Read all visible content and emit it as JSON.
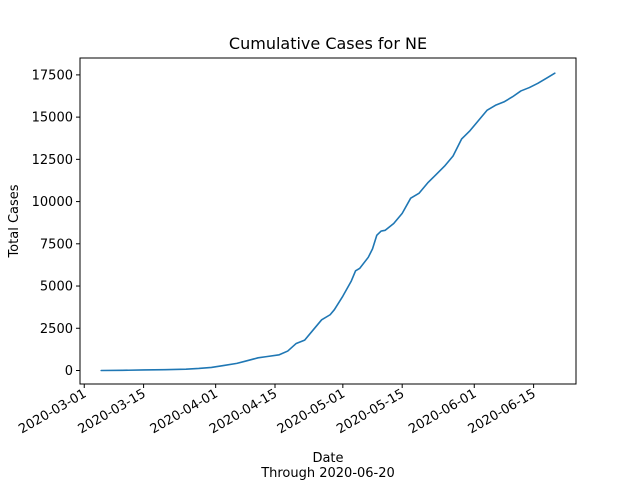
{
  "chart_data": {
    "type": "line",
    "title": "Cumulative Cases for NE",
    "xlabel": "Date",
    "xlabel_sub": "Through 2020-06-20",
    "ylabel": "Total Cases",
    "x_type": "date",
    "xlim": [
      "2020-02-29",
      "2020-06-25"
    ],
    "ylim": [
      -800,
      18500
    ],
    "x_ticks": [
      "2020-03-01",
      "2020-03-15",
      "2020-04-01",
      "2020-04-15",
      "2020-05-01",
      "2020-05-15",
      "2020-06-01",
      "2020-06-15"
    ],
    "y_ticks": [
      0,
      2500,
      5000,
      7500,
      10000,
      12500,
      15000,
      17500
    ],
    "grid": false,
    "series": [
      {
        "color": "#1f77b4",
        "x": [
          "2020-03-05",
          "2020-03-10",
          "2020-03-15",
          "2020-03-20",
          "2020-03-25",
          "2020-03-28",
          "2020-03-31",
          "2020-04-03",
          "2020-04-06",
          "2020-04-08",
          "2020-04-11",
          "2020-04-13",
          "2020-04-16",
          "2020-04-18",
          "2020-04-20",
          "2020-04-22",
          "2020-04-24",
          "2020-04-26",
          "2020-04-28",
          "2020-04-29",
          "2020-05-01",
          "2020-05-03",
          "2020-05-04",
          "2020-05-05",
          "2020-05-07",
          "2020-05-08",
          "2020-05-09",
          "2020-05-10",
          "2020-05-11",
          "2020-05-13",
          "2020-05-15",
          "2020-05-17",
          "2020-05-19",
          "2020-05-21",
          "2020-05-23",
          "2020-05-25",
          "2020-05-27",
          "2020-05-29",
          "2020-05-31",
          "2020-06-02",
          "2020-06-04",
          "2020-06-06",
          "2020-06-08",
          "2020-06-10",
          "2020-06-12",
          "2020-06-14",
          "2020-06-16",
          "2020-06-18",
          "2020-06-20"
        ],
        "y": [
          0,
          10,
          30,
          50,
          80,
          120,
          180,
          300,
          420,
          550,
          750,
          820,
          930,
          1150,
          1600,
          1800,
          2400,
          3000,
          3300,
          3600,
          4400,
          5300,
          5900,
          6050,
          6700,
          7200,
          8000,
          8250,
          8300,
          8700,
          9300,
          10200,
          10500,
          11100,
          11600,
          12100,
          12700,
          13700,
          14200,
          14800,
          15400,
          15700,
          15900,
          16200,
          16550,
          16750,
          17000,
          17300,
          17600
        ]
      }
    ]
  }
}
